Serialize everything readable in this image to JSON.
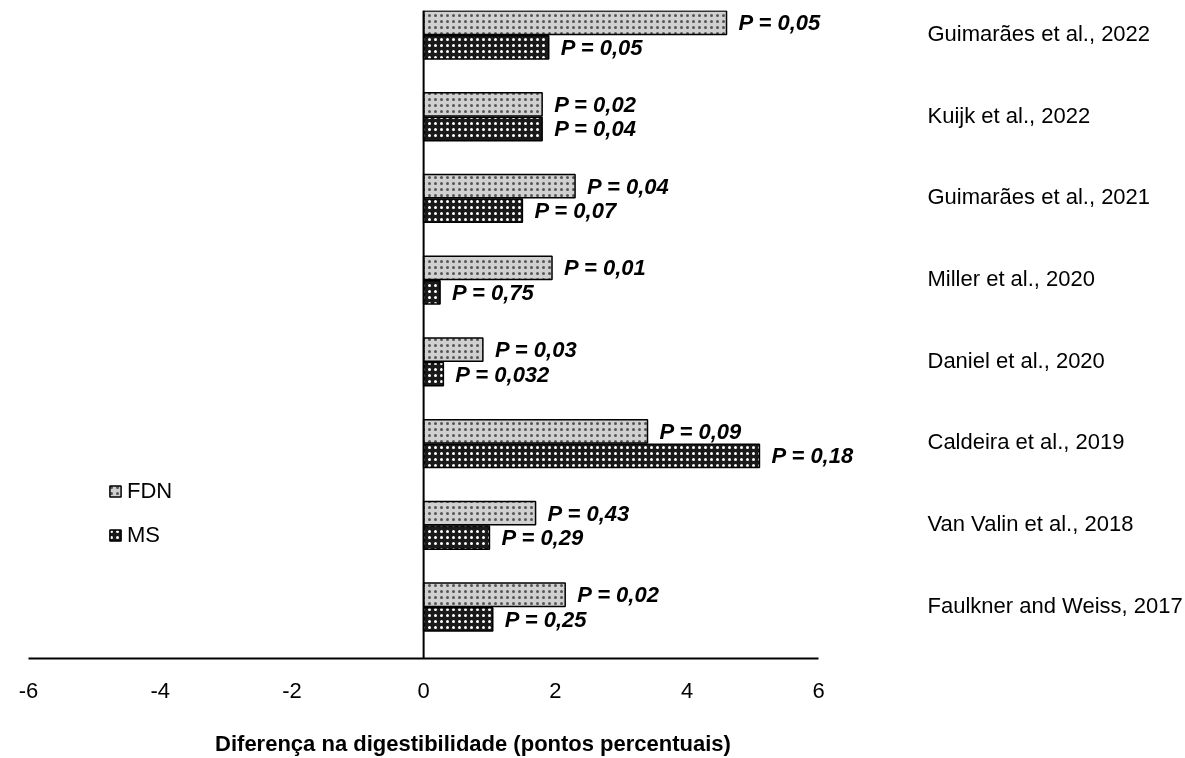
{
  "chart_data": {
    "type": "bar",
    "orientation": "horizontal",
    "xlabel": "Diferença na digestibilidade (pontos percentuais)",
    "categories": [
      "Guimarães et al., 2022",
      "Kuijk et al., 2022",
      "Guimarães et al., 2021",
      "Miller et al., 2020",
      "Daniel et al., 2020",
      "Caldeira et al., 2019",
      "Van Valin et al., 2018",
      "Faulkner and Weiss, 2017"
    ],
    "series": [
      {
        "name": "FDN",
        "color": "#d0d0d0",
        "values": [
          4.6,
          1.8,
          2.3,
          1.95,
          0.9,
          3.4,
          1.7,
          2.15
        ]
      },
      {
        "name": "MS",
        "color": "#1a1a1a",
        "values": [
          1.9,
          1.8,
          1.5,
          0.25,
          0.3,
          5.1,
          1.0,
          1.05
        ]
      }
    ],
    "annotations": [
      {
        "text": "P = 0,05",
        "x": 4.6,
        "y": "Guimarães et al., 2022"
      },
      {
        "text": "P = 0,05",
        "x": 1.9,
        "y": "Guimarães et al., 2022"
      },
      {
        "text": "P = 0,02",
        "x": 1.8,
        "y": "Kuijk et al., 2022"
      },
      {
        "text": "P = 0,04",
        "x": 1.8,
        "y": "Kuijk et al., 2022"
      },
      {
        "text": "P = 0,04",
        "x": 2.3,
        "y": "Guimarães et al., 2021"
      },
      {
        "text": "P = 0,07",
        "x": 1.5,
        "y": "Guimarães et al., 2021"
      },
      {
        "text": "P = 0,01",
        "x": 1.95,
        "y": "Miller et al., 2020"
      },
      {
        "text": "P = 0,75",
        "x": 0.25,
        "y": "Miller et al., 2020"
      },
      {
        "text": "P = 0,03",
        "x": 0.9,
        "y": "Daniel et al., 2020"
      },
      {
        "text": "P = 0,032",
        "x": 0.3,
        "y": "Daniel et al., 2020"
      },
      {
        "text": "P = 0,09",
        "x": 3.4,
        "y": "Caldeira et al., 2019"
      },
      {
        "text": "P = 0,18",
        "x": 5.1,
        "y": "Caldeira et al., 2019"
      },
      {
        "text": "P = 0,43",
        "x": 1.7,
        "y": "Van Valin et al., 2018"
      },
      {
        "text": "P = 0,29",
        "x": 1.0,
        "y": "Van Valin et al., 2018"
      },
      {
        "text": "P = 0,02",
        "x": 2.15,
        "y": "Faulkner and Weiss, 2017"
      },
      {
        "text": "P = 0,25",
        "x": 1.05,
        "y": "Faulkner and Weiss, 2017"
      }
    ],
    "xlim": [
      -6,
      6
    ],
    "xticks": [
      -6,
      -4,
      -2,
      0,
      2,
      4,
      6
    ],
    "ref_lines": [
      {
        "axis": "x",
        "value": 0,
        "color": "#000000"
      }
    ],
    "grid": false,
    "legend": "left"
  }
}
